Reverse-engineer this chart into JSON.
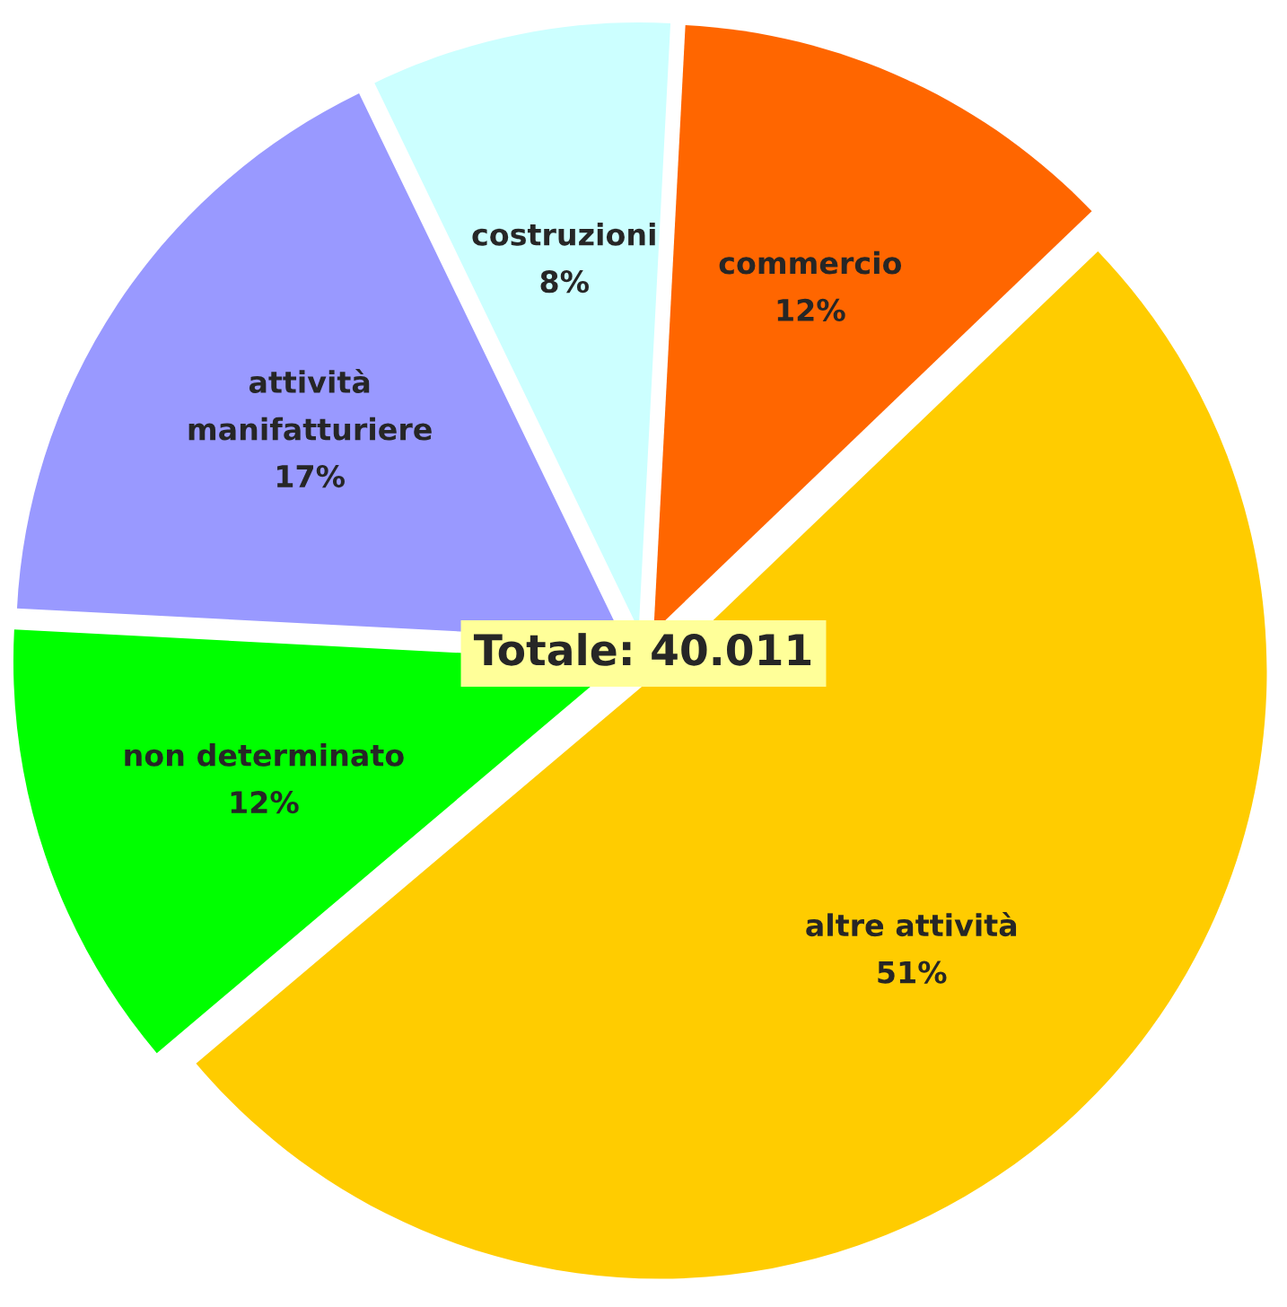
{
  "chart_data": {
    "type": "pie",
    "categories": [
      "commercio",
      "altre attività",
      "non determinato",
      "attività\nmanifatturiere",
      "costruzioni"
    ],
    "values": [
      12,
      51,
      12,
      17,
      8
    ],
    "value_labels": [
      "12%",
      "51%",
      "12%",
      "17%",
      "8%"
    ],
    "colors": [
      "#ff6600",
      "#ffcc00",
      "#00ff00",
      "#9999ff",
      "#ccffff"
    ],
    "annotations": [
      "Totale: 40.011"
    ],
    "legend": false
  }
}
